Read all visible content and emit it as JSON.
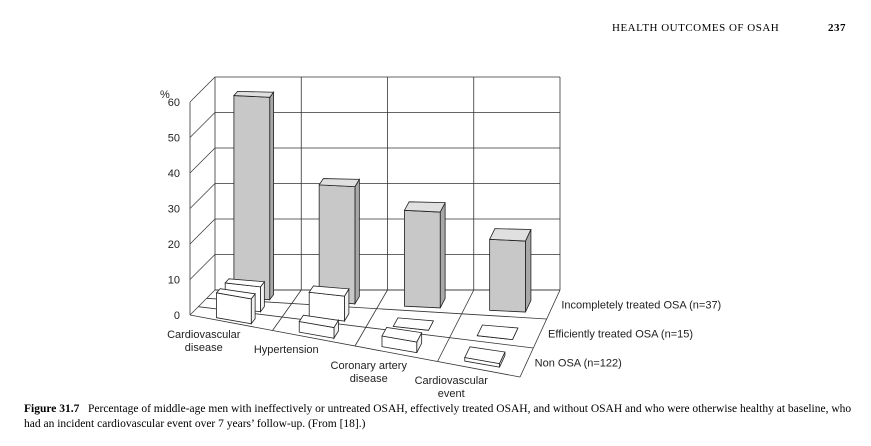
{
  "header": {
    "running_title": "HEALTH OUTCOMES OF OSAH",
    "page_number": "237"
  },
  "chart_data": {
    "type": "bar3d",
    "y_label": "%",
    "categories": [
      "Cardiovascular disease",
      "Hypertension",
      "Coronary artery disease",
      "Cardiovascular event"
    ],
    "series": [
      {
        "name": "Non OSA (n=122)",
        "color": "#ffffff",
        "values": [
          7,
          3,
          3,
          1
        ]
      },
      {
        "name": "Efficiently treated OSA (n=15)",
        "color": "#ffffff",
        "values": [
          7,
          7,
          0,
          0
        ]
      },
      {
        "name": "Incompletely treated OSA (n=37)",
        "color": "#c8c8c8",
        "values": [
          57,
          33,
          27,
          20
        ]
      }
    ],
    "ylim": [
      0,
      60
    ],
    "yticks": [
      0,
      10,
      20,
      30,
      40,
      50,
      60
    ],
    "grid": true
  },
  "caption": {
    "label": "Figure 31.7",
    "text": "Percentage of middle-age men with ineffectively or untreated OSAH, effectively treated OSAH, and without OSAH and who were otherwise healthy at baseline, who had an incident cardiovascular event over 7 years’ follow-up. (From [18].)"
  }
}
